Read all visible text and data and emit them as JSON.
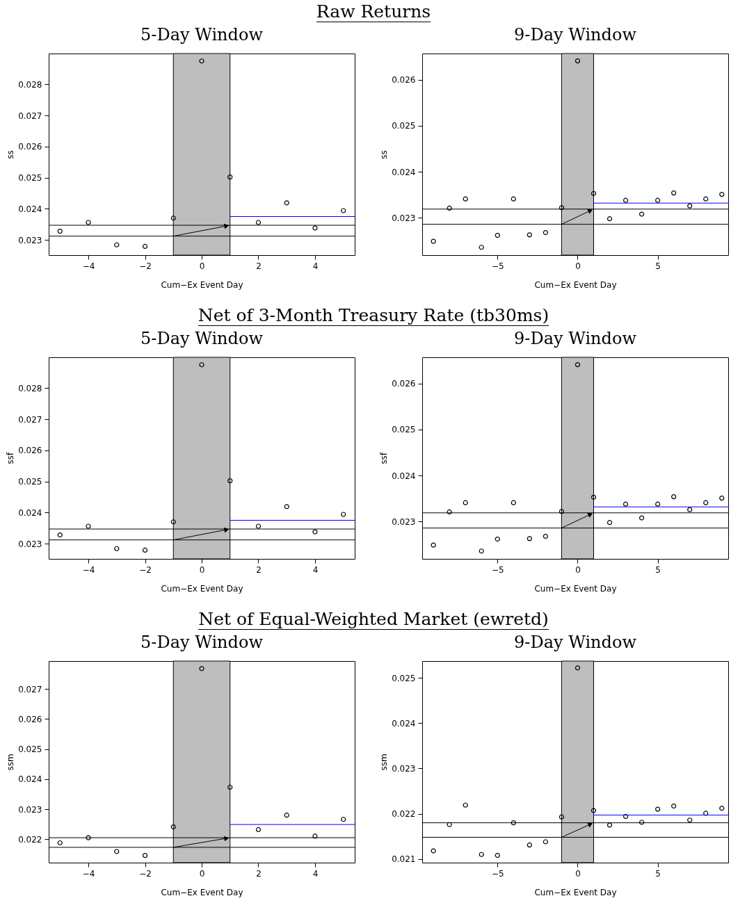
{
  "chart_data": [
    {
      "type": "scatter",
      "title": "5-Day Window",
      "annotations": [
        "Raw Returns"
      ],
      "xlabel": "Cum−Ex Event Day",
      "ylabel": "ss",
      "xlim": [
        -5.4,
        5.4
      ],
      "xticks": [
        -4,
        -2,
        0,
        2,
        4
      ],
      "ylim": [
        0.02251,
        0.02899
      ],
      "yticks": [
        0.023,
        0.024,
        0.025,
        0.026,
        0.027,
        0.028
      ],
      "grid": false,
      "bands": [
        {
          "axis": "x",
          "from": -1,
          "to": 1,
          "color": "#bebebe"
        }
      ],
      "ref_lines": [
        {
          "axis": "y",
          "value": 0.02312,
          "color": "#000000"
        },
        {
          "axis": "y",
          "value": 0.02347,
          "color": "#000000"
        }
      ],
      "series": [
        {
          "type": "scatter",
          "marker": "circle",
          "color": "#000000",
          "x": [
            -5,
            -4,
            -3,
            -2,
            -1,
            0,
            1,
            2,
            3,
            4,
            5
          ],
          "values": [
            0.02328,
            0.02356,
            0.02284,
            0.02279,
            0.0237,
            0.02875,
            0.02502,
            0.02356,
            0.02419,
            0.02338,
            0.02394
          ]
        },
        {
          "type": "line",
          "color": "#0000ff",
          "x": [
            1,
            5.4
          ],
          "values": [
            0.02375,
            0.02375
          ]
        }
      ]
    },
    {
      "type": "scatter",
      "title": "9-Day Window",
      "xlabel": "Cum−Ex Event Day",
      "ylabel": "ss",
      "xlim": [
        -9.7,
        9.4
      ],
      "xticks": [
        -5,
        0,
        5
      ],
      "ylim": [
        0.02219,
        0.02657
      ],
      "yticks": [
        0.023,
        0.024,
        0.025,
        0.026
      ],
      "grid": false,
      "bands": [
        {
          "axis": "x",
          "from": -1,
          "to": 1,
          "color": "#bebebe"
        }
      ],
      "ref_lines": [
        {
          "axis": "y",
          "value": 0.02286,
          "color": "#000000"
        },
        {
          "axis": "y",
          "value": 0.02319,
          "color": "#000000"
        }
      ],
      "series": [
        {
          "type": "scatter",
          "marker": "circle",
          "color": "#000000",
          "x": [
            -9,
            -8,
            -7,
            -6,
            -5,
            -4,
            -3,
            -2,
            -1,
            0,
            1,
            2,
            3,
            4,
            5,
            6,
            7,
            8,
            9
          ],
          "values": [
            0.02249,
            0.02321,
            0.02341,
            0.02236,
            0.02262,
            0.02341,
            0.02263,
            0.02268,
            0.02322,
            0.02641,
            0.02353,
            0.02298,
            0.02338,
            0.02308,
            0.02338,
            0.02354,
            0.02326,
            0.02341,
            0.02351
          ]
        },
        {
          "type": "line",
          "color": "#0000ff",
          "x": [
            1,
            9.4
          ],
          "values": [
            0.02332,
            0.02332
          ]
        }
      ]
    },
    {
      "type": "scatter",
      "title": "5-Day Window",
      "annotations": [
        "Net of 3-Month Treasury Rate (tb30ms)"
      ],
      "xlabel": "Cum−Ex Event Day",
      "ylabel": "ssf",
      "xlim": [
        -5.4,
        5.4
      ],
      "xticks": [
        -4,
        -2,
        0,
        2,
        4
      ],
      "ylim": [
        0.02251,
        0.02899
      ],
      "yticks": [
        0.023,
        0.024,
        0.025,
        0.026,
        0.027,
        0.028
      ],
      "grid": false,
      "bands": [
        {
          "axis": "x",
          "from": -1,
          "to": 1,
          "color": "#bebebe"
        }
      ],
      "ref_lines": [
        {
          "axis": "y",
          "value": 0.02312,
          "color": "#000000"
        },
        {
          "axis": "y",
          "value": 0.02347,
          "color": "#000000"
        }
      ],
      "series": [
        {
          "type": "scatter",
          "marker": "circle",
          "color": "#000000",
          "x": [
            -5,
            -4,
            -3,
            -2,
            -1,
            0,
            1,
            2,
            3,
            4,
            5
          ],
          "values": [
            0.02328,
            0.02356,
            0.02284,
            0.02279,
            0.0237,
            0.02875,
            0.02502,
            0.02356,
            0.02419,
            0.02338,
            0.02394
          ]
        },
        {
          "type": "line",
          "color": "#0000ff",
          "x": [
            1,
            5.4
          ],
          "values": [
            0.02375,
            0.02375
          ]
        }
      ]
    },
    {
      "type": "scatter",
      "title": "9-Day Window",
      "xlabel": "Cum−Ex Event Day",
      "ylabel": "ssf",
      "xlim": [
        -9.7,
        9.4
      ],
      "xticks": [
        -5,
        0,
        5
      ],
      "ylim": [
        0.02219,
        0.02657
      ],
      "yticks": [
        0.023,
        0.024,
        0.025,
        0.026
      ],
      "grid": false,
      "bands": [
        {
          "axis": "x",
          "from": -1,
          "to": 1,
          "color": "#bebebe"
        }
      ],
      "ref_lines": [
        {
          "axis": "y",
          "value": 0.02286,
          "color": "#000000"
        },
        {
          "axis": "y",
          "value": 0.02319,
          "color": "#000000"
        }
      ],
      "series": [
        {
          "type": "scatter",
          "marker": "circle",
          "color": "#000000",
          "x": [
            -9,
            -8,
            -7,
            -6,
            -5,
            -4,
            -3,
            -2,
            -1,
            0,
            1,
            2,
            3,
            4,
            5,
            6,
            7,
            8,
            9
          ],
          "values": [
            0.02249,
            0.02321,
            0.02341,
            0.02236,
            0.02262,
            0.02341,
            0.02263,
            0.02268,
            0.02322,
            0.02641,
            0.02353,
            0.02298,
            0.02338,
            0.02308,
            0.02338,
            0.02354,
            0.02326,
            0.02341,
            0.02351
          ]
        },
        {
          "type": "line",
          "color": "#0000ff",
          "x": [
            1,
            9.4
          ],
          "values": [
            0.02332,
            0.02332
          ]
        }
      ]
    },
    {
      "type": "scatter",
      "title": "5-Day Window",
      "annotations": [
        "Net of Equal-Weighted Market (ewretd)"
      ],
      "xlabel": "Cum−Ex Event Day",
      "ylabel": "ssm",
      "xlim": [
        -5.4,
        5.4
      ],
      "xticks": [
        -4,
        -2,
        0,
        2,
        4
      ],
      "ylim": [
        0.02122,
        0.02793
      ],
      "yticks": [
        0.022,
        0.023,
        0.024,
        0.025,
        0.026,
        0.027
      ],
      "grid": false,
      "bands": [
        {
          "axis": "x",
          "from": -1,
          "to": 1,
          "color": "#bebebe"
        }
      ],
      "ref_lines": [
        {
          "axis": "y",
          "value": 0.02173,
          "color": "#000000"
        },
        {
          "axis": "y",
          "value": 0.02205,
          "color": "#000000"
        }
      ],
      "series": [
        {
          "type": "scatter",
          "marker": "circle",
          "color": "#000000",
          "x": [
            -5,
            -4,
            -3,
            -2,
            -1,
            0,
            1,
            2,
            3,
            4,
            5
          ],
          "values": [
            0.02188,
            0.02205,
            0.02159,
            0.02146,
            0.02241,
            0.02768,
            0.02373,
            0.02232,
            0.0228,
            0.0221,
            0.02266
          ]
        },
        {
          "type": "line",
          "color": "#0000ff",
          "x": [
            1,
            5.4
          ],
          "values": [
            0.02249,
            0.02249
          ]
        }
      ]
    },
    {
      "type": "scatter",
      "title": "9-Day Window",
      "xlabel": "Cum−Ex Event Day",
      "ylabel": "ssm",
      "xlim": [
        -9.7,
        9.4
      ],
      "xticks": [
        -5,
        0,
        5
      ],
      "ylim": [
        0.02092,
        0.02537
      ],
      "yticks": [
        0.021,
        0.022,
        0.023,
        0.024,
        0.025
      ],
      "grid": false,
      "bands": [
        {
          "axis": "x",
          "from": -1,
          "to": 1,
          "color": "#bebebe"
        }
      ],
      "ref_lines": [
        {
          "axis": "y",
          "value": 0.02148,
          "color": "#000000"
        },
        {
          "axis": "y",
          "value": 0.0218,
          "color": "#000000"
        }
      ],
      "series": [
        {
          "type": "scatter",
          "marker": "circle",
          "color": "#000000",
          "x": [
            -9,
            -8,
            -7,
            -6,
            -5,
            -4,
            -3,
            -2,
            -1,
            0,
            1,
            2,
            3,
            4,
            5,
            6,
            7,
            8,
            9
          ],
          "values": [
            0.02118,
            0.02176,
            0.02219,
            0.0211,
            0.02108,
            0.0218,
            0.02131,
            0.02138,
            0.02193,
            0.02522,
            0.02207,
            0.02175,
            0.02194,
            0.02181,
            0.0221,
            0.02217,
            0.02186,
            0.02201,
            0.02212
          ]
        },
        {
          "type": "line",
          "color": "#0000ff",
          "x": [
            1,
            9.4
          ],
          "values": [
            0.02197,
            0.02197
          ]
        }
      ]
    }
  ]
}
